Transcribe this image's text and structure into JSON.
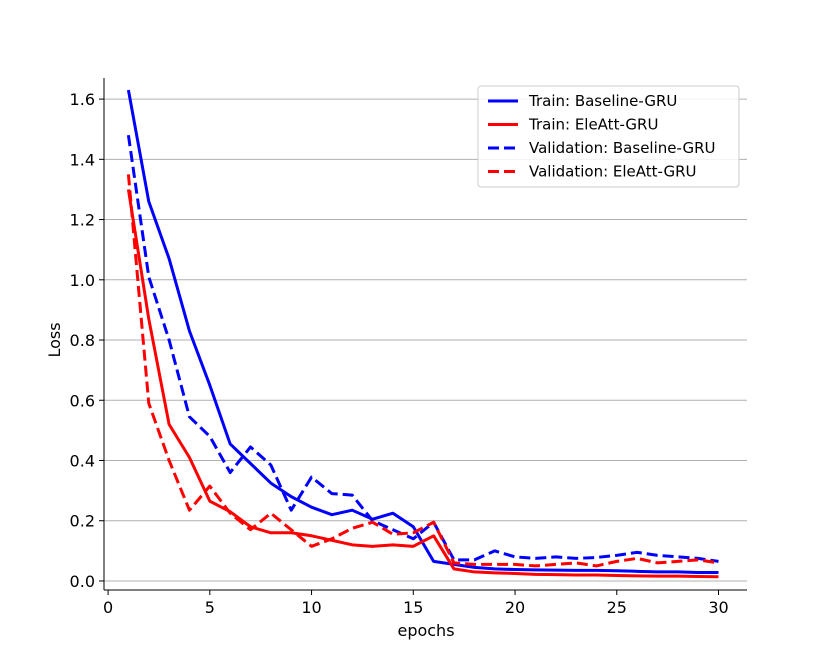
{
  "chart_data": {
    "type": "line",
    "title": "",
    "xlabel": "epochs",
    "ylabel": "Loss",
    "xlim": [
      -0.2,
      31.4
    ],
    "ylim": [
      -0.03,
      1.67
    ],
    "xticks": [
      0,
      5,
      10,
      15,
      20,
      25,
      30
    ],
    "yticks": [
      0.0,
      0.2,
      0.4,
      0.6,
      0.8,
      1.0,
      1.2,
      1.4,
      1.6
    ],
    "grid": "horizontal",
    "legend_position": "top-right",
    "x": [
      1,
      2,
      3,
      4,
      5,
      6,
      7,
      8,
      9,
      10,
      11,
      12,
      13,
      14,
      15,
      16,
      17,
      18,
      19,
      20,
      21,
      22,
      23,
      24,
      25,
      26,
      27,
      28,
      29,
      30
    ],
    "series": [
      {
        "name": "Train: Baseline-GRU",
        "color": "#0000ff",
        "style": "solid",
        "values": [
          1.63,
          1.26,
          1.07,
          0.83,
          0.65,
          0.455,
          0.39,
          0.325,
          0.28,
          0.245,
          0.22,
          0.235,
          0.205,
          0.225,
          0.18,
          0.065,
          0.055,
          0.045,
          0.04,
          0.038,
          0.037,
          0.036,
          0.035,
          0.035,
          0.034,
          0.032,
          0.03,
          0.03,
          0.028,
          0.028
        ]
      },
      {
        "name": "Train: EleAtt-GRU",
        "color": "#ff0000",
        "style": "solid",
        "values": [
          1.3,
          0.87,
          0.52,
          0.41,
          0.265,
          0.23,
          0.18,
          0.16,
          0.16,
          0.15,
          0.135,
          0.12,
          0.115,
          0.12,
          0.115,
          0.15,
          0.04,
          0.03,
          0.027,
          0.025,
          0.022,
          0.021,
          0.02,
          0.02,
          0.018,
          0.017,
          0.016,
          0.016,
          0.015,
          0.014
        ]
      },
      {
        "name": "Validation: Baseline-GRU",
        "color": "#0000ff",
        "style": "dashed",
        "values": [
          1.48,
          1.01,
          0.8,
          0.545,
          0.48,
          0.36,
          0.445,
          0.385,
          0.235,
          0.345,
          0.29,
          0.285,
          0.2,
          0.17,
          0.14,
          0.195,
          0.07,
          0.07,
          0.1,
          0.08,
          0.075,
          0.08,
          0.075,
          0.078,
          0.085,
          0.095,
          0.085,
          0.08,
          0.075,
          0.065
        ]
      },
      {
        "name": "Validation: EleAtt-GRU",
        "color": "#ff0000",
        "style": "dashed",
        "values": [
          1.35,
          0.59,
          0.4,
          0.235,
          0.315,
          0.225,
          0.17,
          0.225,
          0.17,
          0.115,
          0.14,
          0.175,
          0.195,
          0.155,
          0.16,
          0.195,
          0.06,
          0.055,
          0.055,
          0.055,
          0.05,
          0.055,
          0.06,
          0.05,
          0.065,
          0.075,
          0.06,
          0.065,
          0.07,
          0.06
        ]
      }
    ]
  }
}
